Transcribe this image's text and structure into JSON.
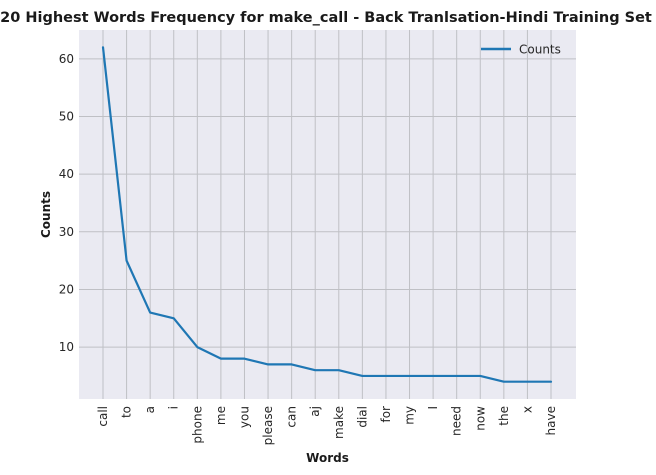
{
  "chart_data": {
    "type": "line",
    "title": "20 Highest Words Frequency for make_call - Back Tranlsation-Hindi Training Set",
    "xlabel": "Words",
    "ylabel": "Counts",
    "categories": [
      "call",
      "to",
      "a",
      "i",
      "phone",
      "me",
      "you",
      "please",
      "can",
      "aj",
      "make",
      "dial",
      "for",
      "my",
      "I",
      "need",
      "now",
      "the",
      "x",
      "have"
    ],
    "series": [
      {
        "name": "Counts",
        "values": [
          62,
          25,
          16,
          15,
          10,
          8,
          8,
          7,
          7,
          6,
          6,
          5,
          5,
          5,
          5,
          5,
          5,
          4,
          4,
          4
        ],
        "color": "#1f77b4"
      }
    ],
    "ylim": [
      1,
      65
    ],
    "yticks": [
      10,
      20,
      30,
      40,
      50,
      60
    ],
    "grid": true,
    "legend": "top-right",
    "colors": {
      "plot_bg": "#eaeaf2",
      "grid": "#bfc0c5"
    }
  }
}
